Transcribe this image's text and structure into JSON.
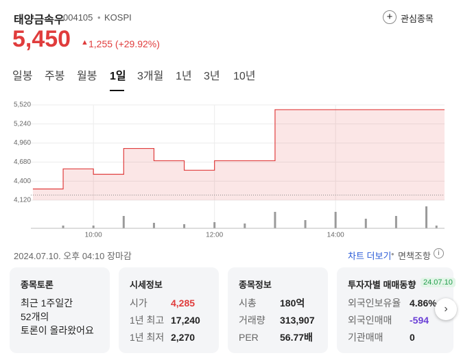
{
  "header": {
    "name": "태양금속우",
    "code": "004105",
    "market": "KOSPI",
    "watch": "관심종목",
    "price": "5,450",
    "change": "1,255 (+29.92%)"
  },
  "tabs": [
    "일봉",
    "주봉",
    "월봉",
    "1일",
    "3개월",
    "1년",
    "3년",
    "10년"
  ],
  "selected_tab": 3,
  "chart_data": {
    "type": "step",
    "color": "#e03c3c",
    "x": [
      540,
      570,
      600,
      630,
      660,
      690,
      720,
      780
    ],
    "values": [
      4285,
      4580,
      4500,
      4880,
      4700,
      4560,
      4700,
      5450
    ],
    "reference": 4195,
    "xlim": [
      538,
      948
    ],
    "ylim": [
      4120,
      5520
    ],
    "xticks": [
      {
        "value": 600,
        "label": "10:00"
      },
      {
        "value": 720,
        "label": "12:00"
      },
      {
        "value": 840,
        "label": "14:00"
      }
    ],
    "yticks": [
      {
        "value": 4120,
        "label": "4,120"
      },
      {
        "value": 4400,
        "label": "4,400"
      },
      {
        "value": 4680,
        "label": "4,680"
      },
      {
        "value": 4960,
        "label": "4,960"
      },
      {
        "value": 5240,
        "label": "5,240"
      },
      {
        "value": 5520,
        "label": "5,520"
      }
    ],
    "grid": true,
    "volume": {
      "color": "#9a9a9a",
      "x": [
        570,
        600,
        630,
        660,
        690,
        720,
        750,
        780,
        810,
        840,
        870,
        900,
        930,
        940
      ],
      "values": [
        4,
        4,
        18,
        8,
        6,
        9,
        7,
        24,
        12,
        24,
        14,
        18,
        32,
        4
      ],
      "ylim": [
        0,
        35
      ]
    }
  },
  "footer": {
    "timestamp": "2024.07.10. 오후 04:10 장마감",
    "more": "차트 더보기",
    "disclaimer": "면책조항"
  },
  "cards": [
    {
      "title": "종목토론",
      "lines": [
        "최근 1주일간",
        "52개의",
        "토론이 올라왔어요"
      ]
    },
    {
      "title": "시세정보",
      "rows": [
        {
          "label": "시가",
          "value": "4,285",
          "color": "#e03c3c"
        },
        {
          "label": "1년 최고",
          "value": "17,240"
        },
        {
          "label": "1년 최저",
          "value": "2,270"
        }
      ]
    },
    {
      "title": "종목정보",
      "rows": [
        {
          "label": "시총",
          "value": "180억"
        },
        {
          "label": "거래량",
          "value": "313,907"
        },
        {
          "label": "PER",
          "value": "56.77배"
        }
      ]
    },
    {
      "title": "투자자별 매매동향",
      "badge": "24.07.10",
      "rows": [
        {
          "label": "외국인보유율",
          "value": "4.86%"
        },
        {
          "label": "외국인매매",
          "value": "-594",
          "color": "#6a3fd6"
        },
        {
          "label": "기관매매",
          "value": "0"
        }
      ]
    }
  ]
}
